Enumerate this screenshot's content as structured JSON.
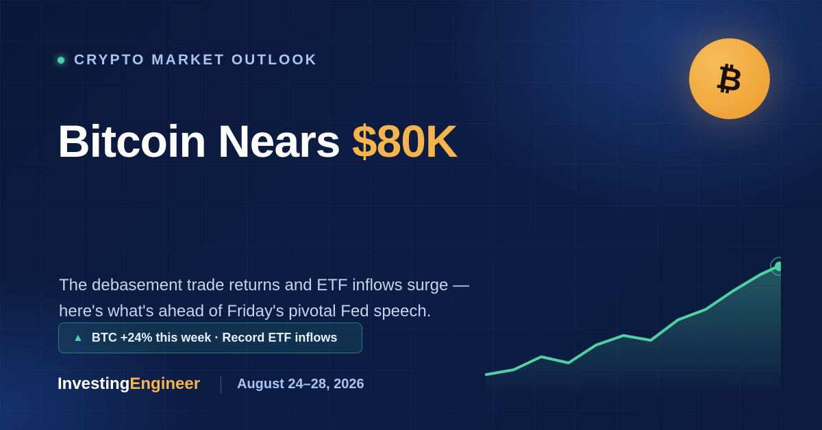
{
  "eyebrow": "CRYPTO MARKET OUTLOOK",
  "headline": {
    "main": "Bitcoin Nears",
    "highlight": "$80K"
  },
  "subtitle": "The debasement trade returns and ETF inflows surge — here's what's ahead of Friday's pivotal Fed speech.",
  "badge": {
    "icon": "▲",
    "text": "BTC +24% this week · Record ETF inflows"
  },
  "brand": {
    "first": "Investing",
    "second": "Engineer"
  },
  "date": "August 24–28, 2026",
  "coin_symbol": "₿"
}
